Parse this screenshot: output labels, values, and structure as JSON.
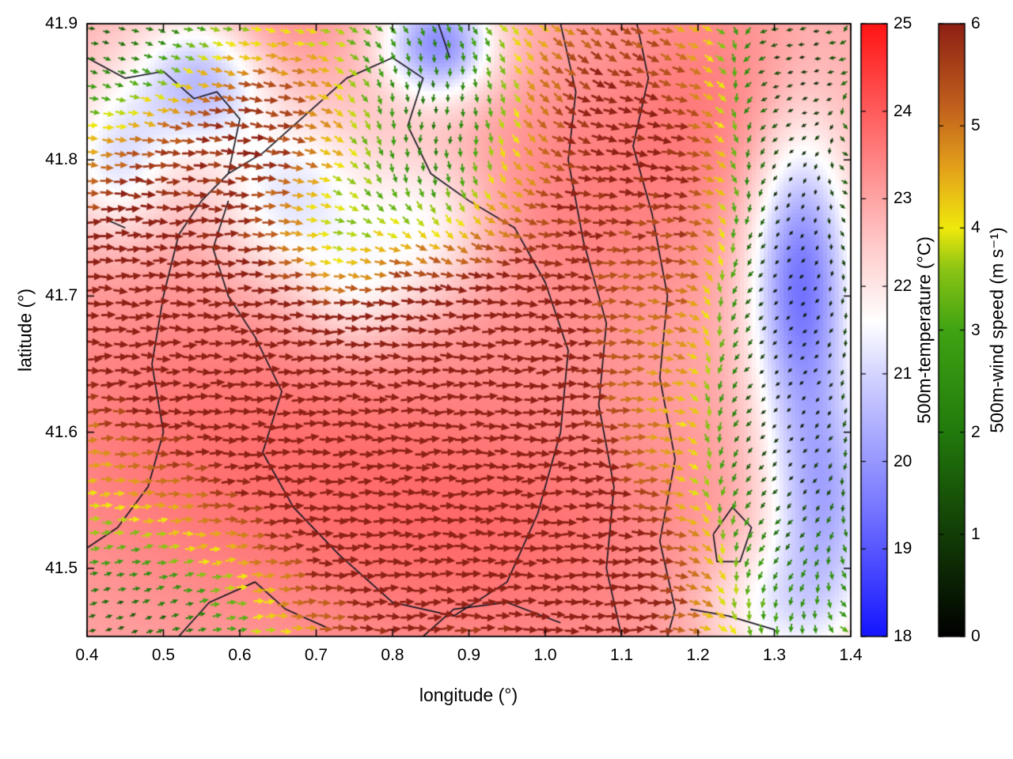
{
  "chart_data": {
    "type": "quiver_heatmap",
    "title": "",
    "xlabel": "longitude (°)",
    "ylabel": "latitude (°)",
    "xlim": [
      0.4,
      1.4
    ],
    "ylim": [
      41.45,
      41.9
    ],
    "xticks": [
      0.4,
      0.5,
      0.6,
      0.7,
      0.8,
      0.9,
      1.0,
      1.1,
      1.2,
      1.3,
      1.4
    ],
    "xtick_labels": [
      "0.4",
      "0.5",
      "0.6",
      "0.7",
      "0.8",
      "0.9",
      "1.0",
      "1.1",
      "1.2",
      "1.3",
      "1.4"
    ],
    "yticks": [
      41.5,
      41.6,
      41.7,
      41.8,
      41.9
    ],
    "ytick_labels": [
      "41.5",
      "41.6",
      "41.7",
      "41.8",
      "41.9"
    ],
    "grid": false,
    "legend": "none",
    "colorbars": [
      {
        "id": "temperature",
        "label": "500m-temperature (°C)",
        "min": 18,
        "max": 25,
        "ticks": [
          18,
          19,
          20,
          21,
          22,
          23,
          24,
          25
        ],
        "tick_labels": [
          "18",
          "19",
          "20",
          "21",
          "22",
          "23",
          "24",
          "25"
        ],
        "stops": [
          {
            "v": 18.0,
            "c": "#1414ff"
          },
          {
            "v": 19.5,
            "c": "#7878ff"
          },
          {
            "v": 21.0,
            "c": "#d4d4ff"
          },
          {
            "v": 21.6,
            "c": "#ffffff"
          },
          {
            "v": 22.5,
            "c": "#ffc8c8"
          },
          {
            "v": 23.5,
            "c": "#ff8080"
          },
          {
            "v": 25.0,
            "c": "#ff1414"
          }
        ]
      },
      {
        "id": "wind_speed",
        "label": "500m-wind speed (m s⁻¹)",
        "min": 0,
        "max": 6,
        "ticks": [
          0,
          1,
          2,
          3,
          4,
          5,
          6
        ],
        "tick_labels": [
          "0",
          "1",
          "2",
          "3",
          "4",
          "5",
          "6"
        ],
        "stops": [
          {
            "v": 0.0,
            "c": "#000000"
          },
          {
            "v": 1.0,
            "c": "#123c06"
          },
          {
            "v": 2.0,
            "c": "#217a0c"
          },
          {
            "v": 3.0,
            "c": "#3fa313"
          },
          {
            "v": 3.6,
            "c": "#8cc414"
          },
          {
            "v": 4.0,
            "c": "#efe90c"
          },
          {
            "v": 4.6,
            "c": "#e3a01b"
          },
          {
            "v": 5.2,
            "c": "#c05f1d"
          },
          {
            "v": 6.0,
            "c": "#8e2014"
          }
        ]
      }
    ],
    "temperature_field": {
      "base": 22.8,
      "blobs": [
        [
          0.55,
          41.86,
          0.06,
          0.035,
          -2.4
        ],
        [
          0.44,
          41.8,
          0.05,
          0.04,
          -1.6
        ],
        [
          0.86,
          41.885,
          0.05,
          0.028,
          -3.0
        ],
        [
          0.67,
          41.77,
          0.07,
          0.045,
          -1.7
        ],
        [
          0.84,
          41.75,
          0.06,
          0.04,
          -1.3
        ],
        [
          0.75,
          41.7,
          0.05,
          0.03,
          -1.0
        ],
        [
          1.335,
          41.71,
          0.045,
          0.075,
          -3.4
        ],
        [
          1.365,
          41.55,
          0.05,
          0.06,
          -2.4
        ],
        [
          1.3,
          41.47,
          0.07,
          0.035,
          -1.3
        ],
        [
          0.55,
          41.6,
          0.25,
          0.1,
          0.8
        ],
        [
          0.95,
          41.52,
          0.22,
          0.08,
          0.8
        ],
        [
          1.05,
          41.77,
          0.12,
          0.08,
          0.6
        ],
        [
          0.62,
          41.9,
          0.08,
          0.04,
          0.7
        ],
        [
          1.22,
          41.85,
          0.1,
          0.07,
          0.6
        ]
      ]
    },
    "wind_field": {
      "speed": {
        "base": 3.2,
        "min": 0.4,
        "max": 6.0,
        "blobs": [
          [
            0.52,
            41.67,
            0.22,
            0.075,
            2.8
          ],
          [
            0.75,
            41.61,
            0.16,
            0.08,
            2.6
          ],
          [
            0.95,
            41.62,
            0.13,
            0.13,
            2.8
          ],
          [
            1.0,
            41.48,
            0.28,
            0.06,
            2.7
          ],
          [
            0.62,
            41.83,
            0.13,
            0.05,
            2.4
          ],
          [
            1.08,
            41.84,
            0.11,
            0.08,
            2.5
          ],
          [
            1.2,
            41.72,
            0.05,
            0.1,
            1.6
          ],
          [
            0.45,
            41.74,
            0.06,
            0.05,
            1.5
          ],
          [
            0.86,
            41.82,
            0.09,
            0.07,
            -2.7
          ],
          [
            1.32,
            41.58,
            0.08,
            0.13,
            -2.9
          ],
          [
            1.33,
            41.75,
            0.06,
            0.08,
            -2.0
          ],
          [
            0.44,
            41.89,
            0.09,
            0.04,
            -2.0
          ],
          [
            1.33,
            41.88,
            0.07,
            0.05,
            -1.8
          ],
          [
            0.47,
            41.46,
            0.12,
            0.04,
            -2.2
          ],
          [
            0.72,
            41.73,
            0.05,
            0.04,
            -1.6
          ],
          [
            0.92,
            41.46,
            0.06,
            0.03,
            -1.2
          ]
        ]
      },
      "u": {
        "base": 1.0,
        "blobs": [
          [
            1.31,
            41.62,
            0.08,
            0.15,
            -1.9
          ],
          [
            0.86,
            41.83,
            0.08,
            0.06,
            -1.1
          ],
          [
            1.33,
            41.88,
            0.07,
            0.05,
            -1.3
          ]
        ]
      },
      "v": {
        "base": 0.0,
        "blobs": [
          [
            0.86,
            41.83,
            0.09,
            0.06,
            -1.3
          ],
          [
            1.31,
            41.6,
            0.07,
            0.14,
            -0.8
          ],
          [
            1.05,
            41.88,
            0.12,
            0.045,
            -0.5
          ],
          [
            0.5,
            41.87,
            0.1,
            0.04,
            -0.35
          ],
          [
            0.45,
            41.47,
            0.1,
            0.04,
            0.3
          ]
        ]
      }
    },
    "contours": [
      [
        [
          0.4,
          41.875
        ],
        [
          0.45,
          41.86
        ],
        [
          0.5,
          41.865
        ],
        [
          0.54,
          41.845
        ],
        [
          0.57,
          41.85
        ],
        [
          0.6,
          41.83
        ],
        [
          0.585,
          41.79
        ],
        [
          0.55,
          41.77
        ],
        [
          0.52,
          41.745
        ],
        [
          0.5,
          41.7
        ],
        [
          0.485,
          41.65
        ],
        [
          0.5,
          41.6
        ],
        [
          0.48,
          41.56
        ],
        [
          0.44,
          41.53
        ],
        [
          0.4,
          41.515
        ]
      ],
      [
        [
          0.585,
          41.79
        ],
        [
          0.63,
          41.805
        ],
        [
          0.68,
          41.83
        ],
        [
          0.74,
          41.86
        ],
        [
          0.8,
          41.875
        ],
        [
          0.84,
          41.86
        ],
        [
          0.82,
          41.825
        ],
        [
          0.85,
          41.79
        ],
        [
          0.9,
          41.77
        ],
        [
          0.96,
          41.75
        ],
        [
          1.0,
          41.71
        ],
        [
          1.03,
          41.66
        ],
        [
          1.02,
          41.6
        ],
        [
          0.99,
          41.54
        ],
        [
          0.95,
          41.49
        ],
        [
          0.88,
          41.465
        ],
        [
          0.8,
          41.475
        ],
        [
          0.73,
          41.51
        ],
        [
          0.67,
          41.545
        ],
        [
          0.63,
          41.585
        ],
        [
          0.655,
          41.63
        ],
        [
          0.62,
          41.67
        ],
        [
          0.585,
          41.7
        ],
        [
          0.565,
          41.735
        ],
        [
          0.585,
          41.77
        ]
      ],
      [
        [
          1.12,
          41.9
        ],
        [
          1.135,
          41.86
        ],
        [
          1.115,
          41.81
        ],
        [
          1.14,
          41.76
        ],
        [
          1.16,
          41.7
        ],
        [
          1.15,
          41.64
        ],
        [
          1.17,
          41.58
        ],
        [
          1.15,
          41.52
        ],
        [
          1.17,
          41.47
        ],
        [
          1.16,
          41.45
        ]
      ],
      [
        [
          1.02,
          41.9
        ],
        [
          1.04,
          41.85
        ],
        [
          1.03,
          41.8
        ],
        [
          1.05,
          41.74
        ],
        [
          1.08,
          41.68
        ],
        [
          1.07,
          41.62
        ],
        [
          1.09,
          41.56
        ],
        [
          1.08,
          41.5
        ],
        [
          1.1,
          41.45
        ]
      ],
      [
        [
          1.22,
          41.525
        ],
        [
          1.245,
          41.545
        ],
        [
          1.27,
          41.53
        ],
        [
          1.255,
          41.505
        ],
        [
          1.225,
          41.505
        ],
        [
          1.22,
          41.525
        ]
      ],
      [
        [
          0.52,
          41.45
        ],
        [
          0.56,
          41.475
        ],
        [
          0.62,
          41.49
        ],
        [
          0.66,
          41.47
        ],
        [
          0.72,
          41.455
        ]
      ],
      [
        [
          0.84,
          41.45
        ],
        [
          0.88,
          41.47
        ],
        [
          0.95,
          41.475
        ],
        [
          1.02,
          41.46
        ]
      ],
      [
        [
          0.86,
          41.9
        ],
        [
          0.875,
          41.875
        ]
      ],
      [
        [
          1.19,
          41.47
        ],
        [
          1.24,
          41.465
        ],
        [
          1.3,
          41.455
        ]
      ],
      [
        [
          0.43,
          41.755
        ],
        [
          0.45,
          41.75
        ]
      ]
    ],
    "arrow_grid": {
      "nx": 56,
      "ny": 45
    }
  }
}
